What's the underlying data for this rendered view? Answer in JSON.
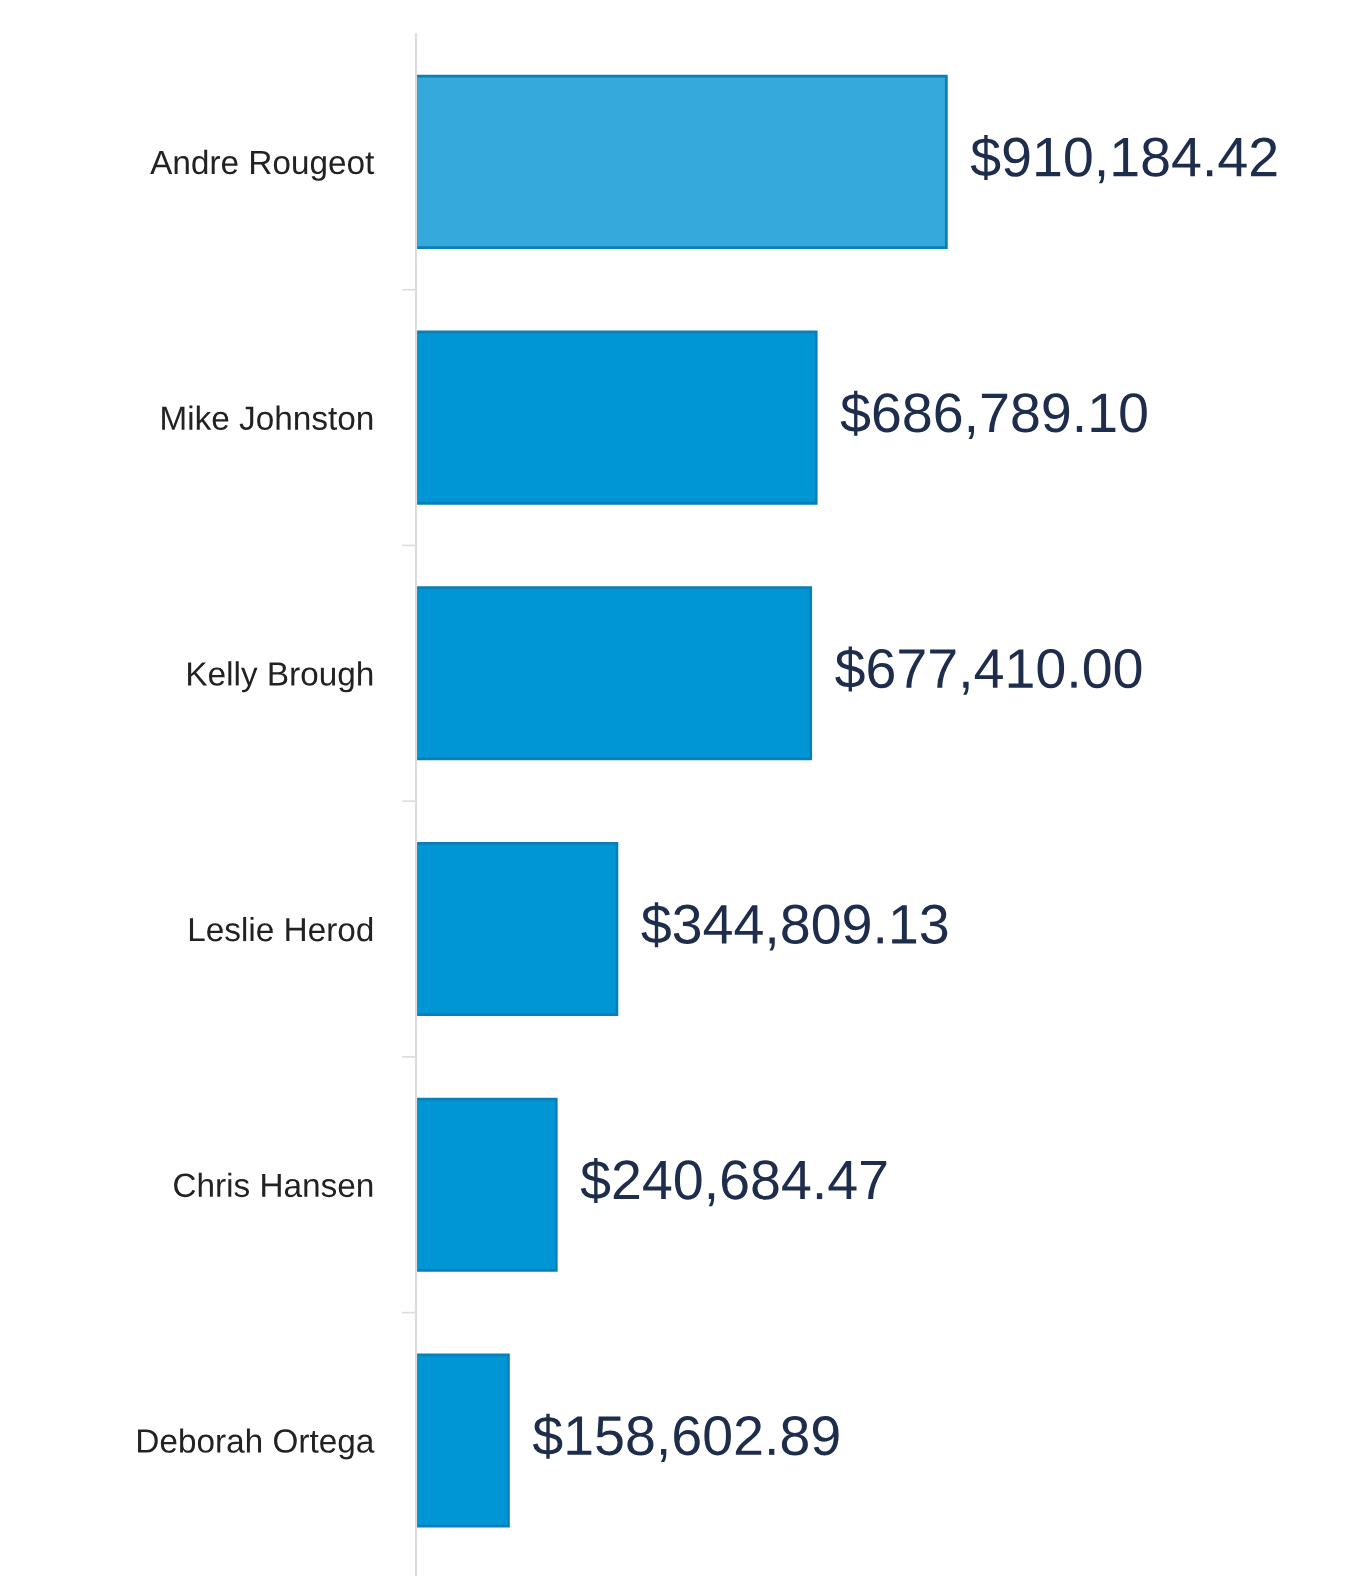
{
  "chart_data": {
    "type": "bar",
    "orientation": "horizontal",
    "categories": [
      "Andre Rougeot",
      "Mike Johnston",
      "Kelly Brough",
      "Leslie Herod",
      "Chris Hansen",
      "Deborah Ortega"
    ],
    "values": [
      910184.42,
      686789.1,
      677410.0,
      344809.13,
      240684.47,
      158602.89
    ],
    "colors": [
      "#35a9dc",
      "#0096d6",
      "#0096d6",
      "#0096d6",
      "#0096d6",
      "#0096d6"
    ],
    "value_labels": [
      "$910,184.42",
      "$686,789.10",
      "$677,410.00",
      "$344,809.13",
      "$240,684.47",
      "$158,602.89"
    ],
    "grid": false,
    "legend": false
  }
}
